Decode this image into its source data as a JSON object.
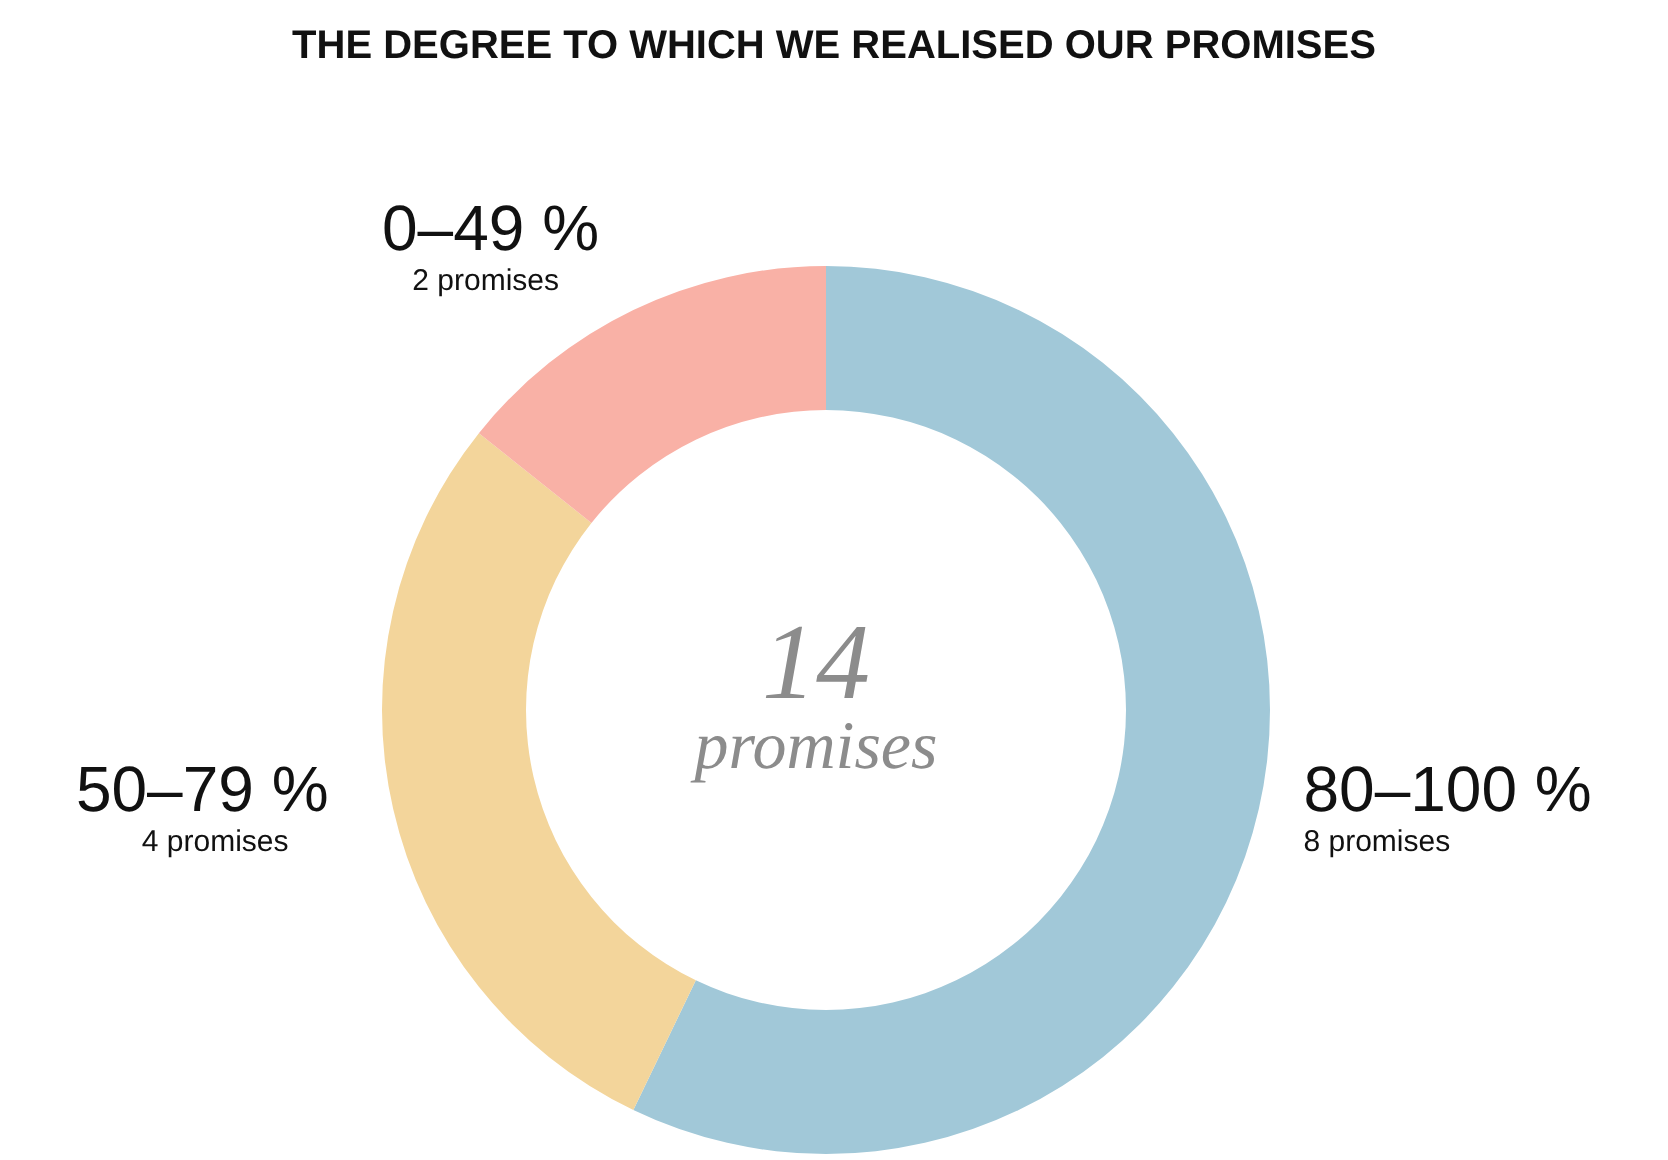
{
  "chart_data": {
    "type": "donut",
    "title": "THE DEGREE TO WHICH WE REALISED OUR PROMISES",
    "categories": [
      "80–100 %",
      "50–79 %",
      "0–49 %"
    ],
    "values": [
      8,
      4,
      2
    ],
    "colors": [
      "#a1c8d8",
      "#f3d59b",
      "#f9b1a6"
    ],
    "value_labels": [
      "8 promises",
      "4 promises",
      "2 promises"
    ],
    "annotations": [
      "14",
      "promises"
    ],
    "legend": false
  }
}
